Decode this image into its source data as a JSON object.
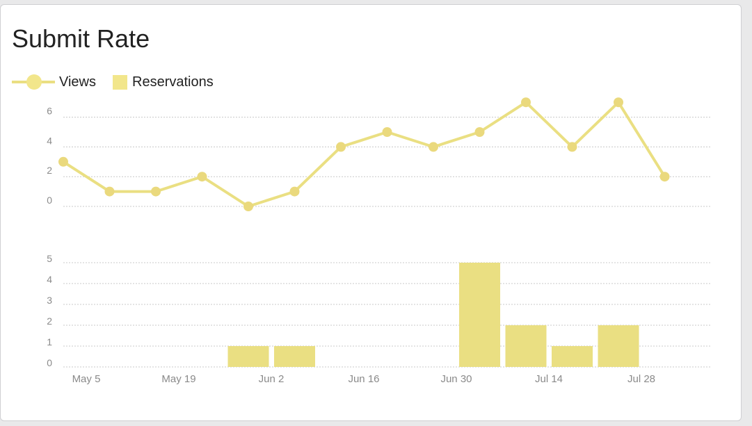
{
  "title": "Submit Rate",
  "colors": {
    "line": "#eadf82",
    "marker": "#ead97d",
    "bar": "#eadf82",
    "legend_swatch": "#f2e68b",
    "grid": "#c8c8c8",
    "tick": "#8a8a8a"
  },
  "chart_data": [
    {
      "type": "line",
      "title": "",
      "series": [
        {
          "name": "Views",
          "x": [
            "2019-05-05",
            "2019-05-12",
            "2019-05-19",
            "2019-05-26",
            "2019-06-02",
            "2019-06-09",
            "2019-06-16",
            "2019-06-23",
            "2019-06-30",
            "2019-07-07",
            "2019-07-14",
            "2019-07-21",
            "2019-07-28",
            "2019-08-04"
          ],
          "values": [
            3,
            1,
            1,
            2,
            0,
            1,
            4,
            5,
            4,
            5,
            7,
            4,
            7,
            2
          ]
        }
      ],
      "ylim": [
        0,
        7
      ],
      "yticks": [
        "0",
        "2",
        "4",
        "6"
      ],
      "grid": true,
      "legend": "top-left"
    },
    {
      "type": "bar",
      "title": "",
      "series": [
        {
          "name": "Reservations",
          "x": [
            "2019-06-02",
            "2019-06-09",
            "2019-07-07",
            "2019-07-14",
            "2019-07-21",
            "2019-07-28"
          ],
          "values": [
            1,
            1,
            5,
            2,
            1,
            2
          ]
        }
      ],
      "ylim": [
        0,
        5
      ],
      "yticks": [
        "0",
        "1",
        "2",
        "3",
        "4",
        "5"
      ],
      "xtick_labels": [
        "May 5",
        "May 19",
        "Jun 2",
        "Jun 16",
        "Jun 30",
        "Jul 14",
        "Jul 28"
      ],
      "grid": true
    }
  ],
  "legend": [
    {
      "label": "Views",
      "kind": "line"
    },
    {
      "label": "Reservations",
      "kind": "box"
    }
  ]
}
